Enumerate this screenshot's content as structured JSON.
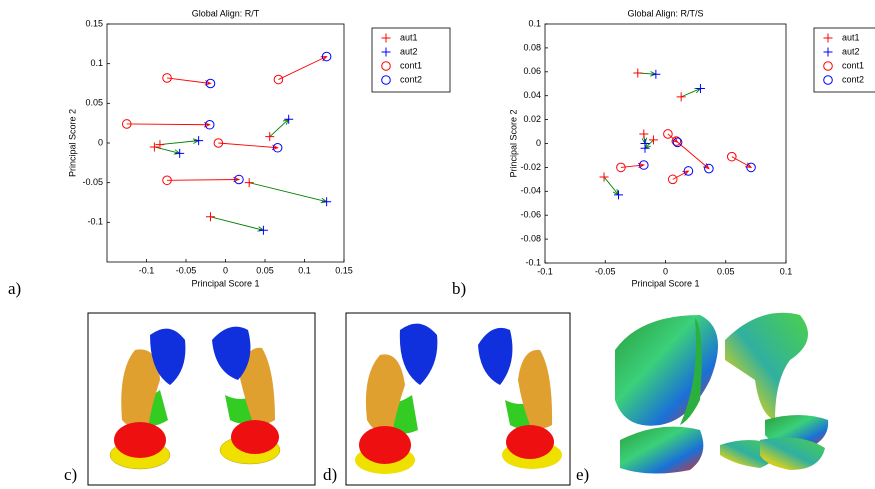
{
  "chart_data": [
    {
      "type": "scatter",
      "title": "Global Align: R/T",
      "xlabel": "Principal Score 1",
      "ylabel": "Principal Score 2",
      "xlim": [
        -0.15,
        0.15
      ],
      "xticks": [
        -0.1,
        -0.05,
        0,
        0.05,
        0.1,
        0.15
      ],
      "ylim": [
        -0.15,
        0.15
      ],
      "yticks": [
        -0.1,
        -0.05,
        0,
        0.05,
        0.1,
        0.15
      ],
      "legend": "outside-right",
      "series": [
        {
          "name": "aut1",
          "color": "#ff0000",
          "marker": "+",
          "arrow_color": "#008000",
          "x": [
            -0.09,
            -0.083,
            -0.019,
            0.03,
            0.056
          ],
          "values": [
            -0.005,
            -0.002,
            -0.093,
            -0.05,
            0.008
          ]
        },
        {
          "name": "aut2",
          "color": "#0000ff",
          "marker": "+",
          "x": [
            -0.058,
            -0.034,
            0.048,
            0.128,
            0.08
          ],
          "values": [
            -0.013,
            0.003,
            -0.11,
            -0.074,
            0.03
          ]
        },
        {
          "name": "cont1",
          "color": "#ff0000",
          "marker": "o",
          "arrow_color": "#ff0000",
          "x": [
            -0.074,
            -0.125,
            -0.074,
            -0.009,
            0.067
          ],
          "values": [
            0.082,
            0.024,
            -0.047,
            0,
            0.08
          ]
        },
        {
          "name": "cont2",
          "color": "#0000ff",
          "marker": "o",
          "x": [
            -0.019,
            -0.02,
            0.017,
            0.066,
            0.128
          ],
          "values": [
            0.075,
            0.023,
            -0.046,
            -0.006,
            0.109
          ]
        }
      ]
    },
    {
      "type": "scatter",
      "title": "Global Align: R/T/S",
      "xlabel": "Principal Score 1",
      "ylabel": "Principal Score 2",
      "xlim": [
        -0.1,
        0.1
      ],
      "xticks": [
        -0.1,
        -0.05,
        0,
        0.05,
        0.1
      ],
      "ylim": [
        -0.1,
        0.1
      ],
      "yticks": [
        -0.1,
        -0.08,
        -0.06,
        -0.04,
        -0.02,
        0,
        0.02,
        0.04,
        0.06,
        0.08,
        0.1
      ],
      "legend": "outside-right",
      "series": [
        {
          "name": "aut1",
          "color": "#ff0000",
          "marker": "+",
          "arrow_color": "#008000",
          "x": [
            -0.023,
            0.013,
            -0.018,
            -0.01,
            -0.051
          ],
          "values": [
            0.059,
            0.039,
            0.008,
            0.003,
            -0.028
          ]
        },
        {
          "name": "aut2",
          "color": "#0000ff",
          "marker": "+",
          "x": [
            -0.008,
            0.029,
            -0.017,
            -0.017,
            -0.039
          ],
          "values": [
            0.058,
            0.046,
            0,
            -0.004,
            -0.043
          ]
        },
        {
          "name": "cont1",
          "color": "#ff0000",
          "marker": "o",
          "arrow_color": "#ff0000",
          "x": [
            -0.037,
            0.002,
            0.006,
            0.055,
            0.009
          ],
          "values": [
            -0.02,
            0.008,
            -0.03,
            -0.011,
            0.002
          ]
        },
        {
          "name": "cont2",
          "color": "#0000ff",
          "marker": "o",
          "x": [
            -0.018,
            0.01,
            0.019,
            0.071,
            0.036
          ],
          "values": [
            -0.018,
            0.001,
            -0.023,
            -0.02,
            -0.021
          ]
        }
      ]
    }
  ],
  "panel_labels": [
    "a)",
    "b)",
    "c)",
    "d)",
    "e)"
  ]
}
